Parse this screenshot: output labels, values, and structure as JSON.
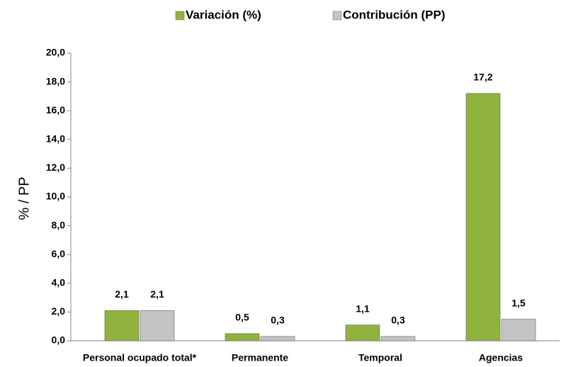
{
  "chart_data": {
    "type": "bar",
    "categories": [
      "Personal ocupado total*",
      "Permanente",
      "Temporal",
      "Agencias"
    ],
    "series": [
      {
        "name": "Variación (%)",
        "color": "#8fb33c",
        "values": [
          2.1,
          0.5,
          1.1,
          17.2
        ],
        "value_labels": [
          "2,1",
          "0,5",
          "1,1",
          "17,2"
        ]
      },
      {
        "name": "Contribución (PP)",
        "color": "#c4c4c4",
        "values": [
          2.1,
          0.3,
          0.3,
          1.5
        ],
        "value_labels": [
          "2,1",
          "0,3",
          "0,3",
          "1,5"
        ]
      }
    ],
    "y_label": "% / PP",
    "ylim": [
      0,
      20
    ],
    "yticks": [
      {
        "value": 0,
        "label": "0,0"
      },
      {
        "value": 2,
        "label": "2,0"
      },
      {
        "value": 4,
        "label": "4,0"
      },
      {
        "value": 6,
        "label": "6,0"
      },
      {
        "value": 8,
        "label": "8,0"
      },
      {
        "value": 10,
        "label": "10,0"
      },
      {
        "value": 12,
        "label": "12,0"
      },
      {
        "value": 14,
        "label": "14,0"
      },
      {
        "value": 16,
        "label": "16,0"
      },
      {
        "value": 18,
        "label": "18,0"
      },
      {
        "value": 20,
        "label": "20,0"
      }
    ],
    "legend": "top",
    "grid": false
  }
}
